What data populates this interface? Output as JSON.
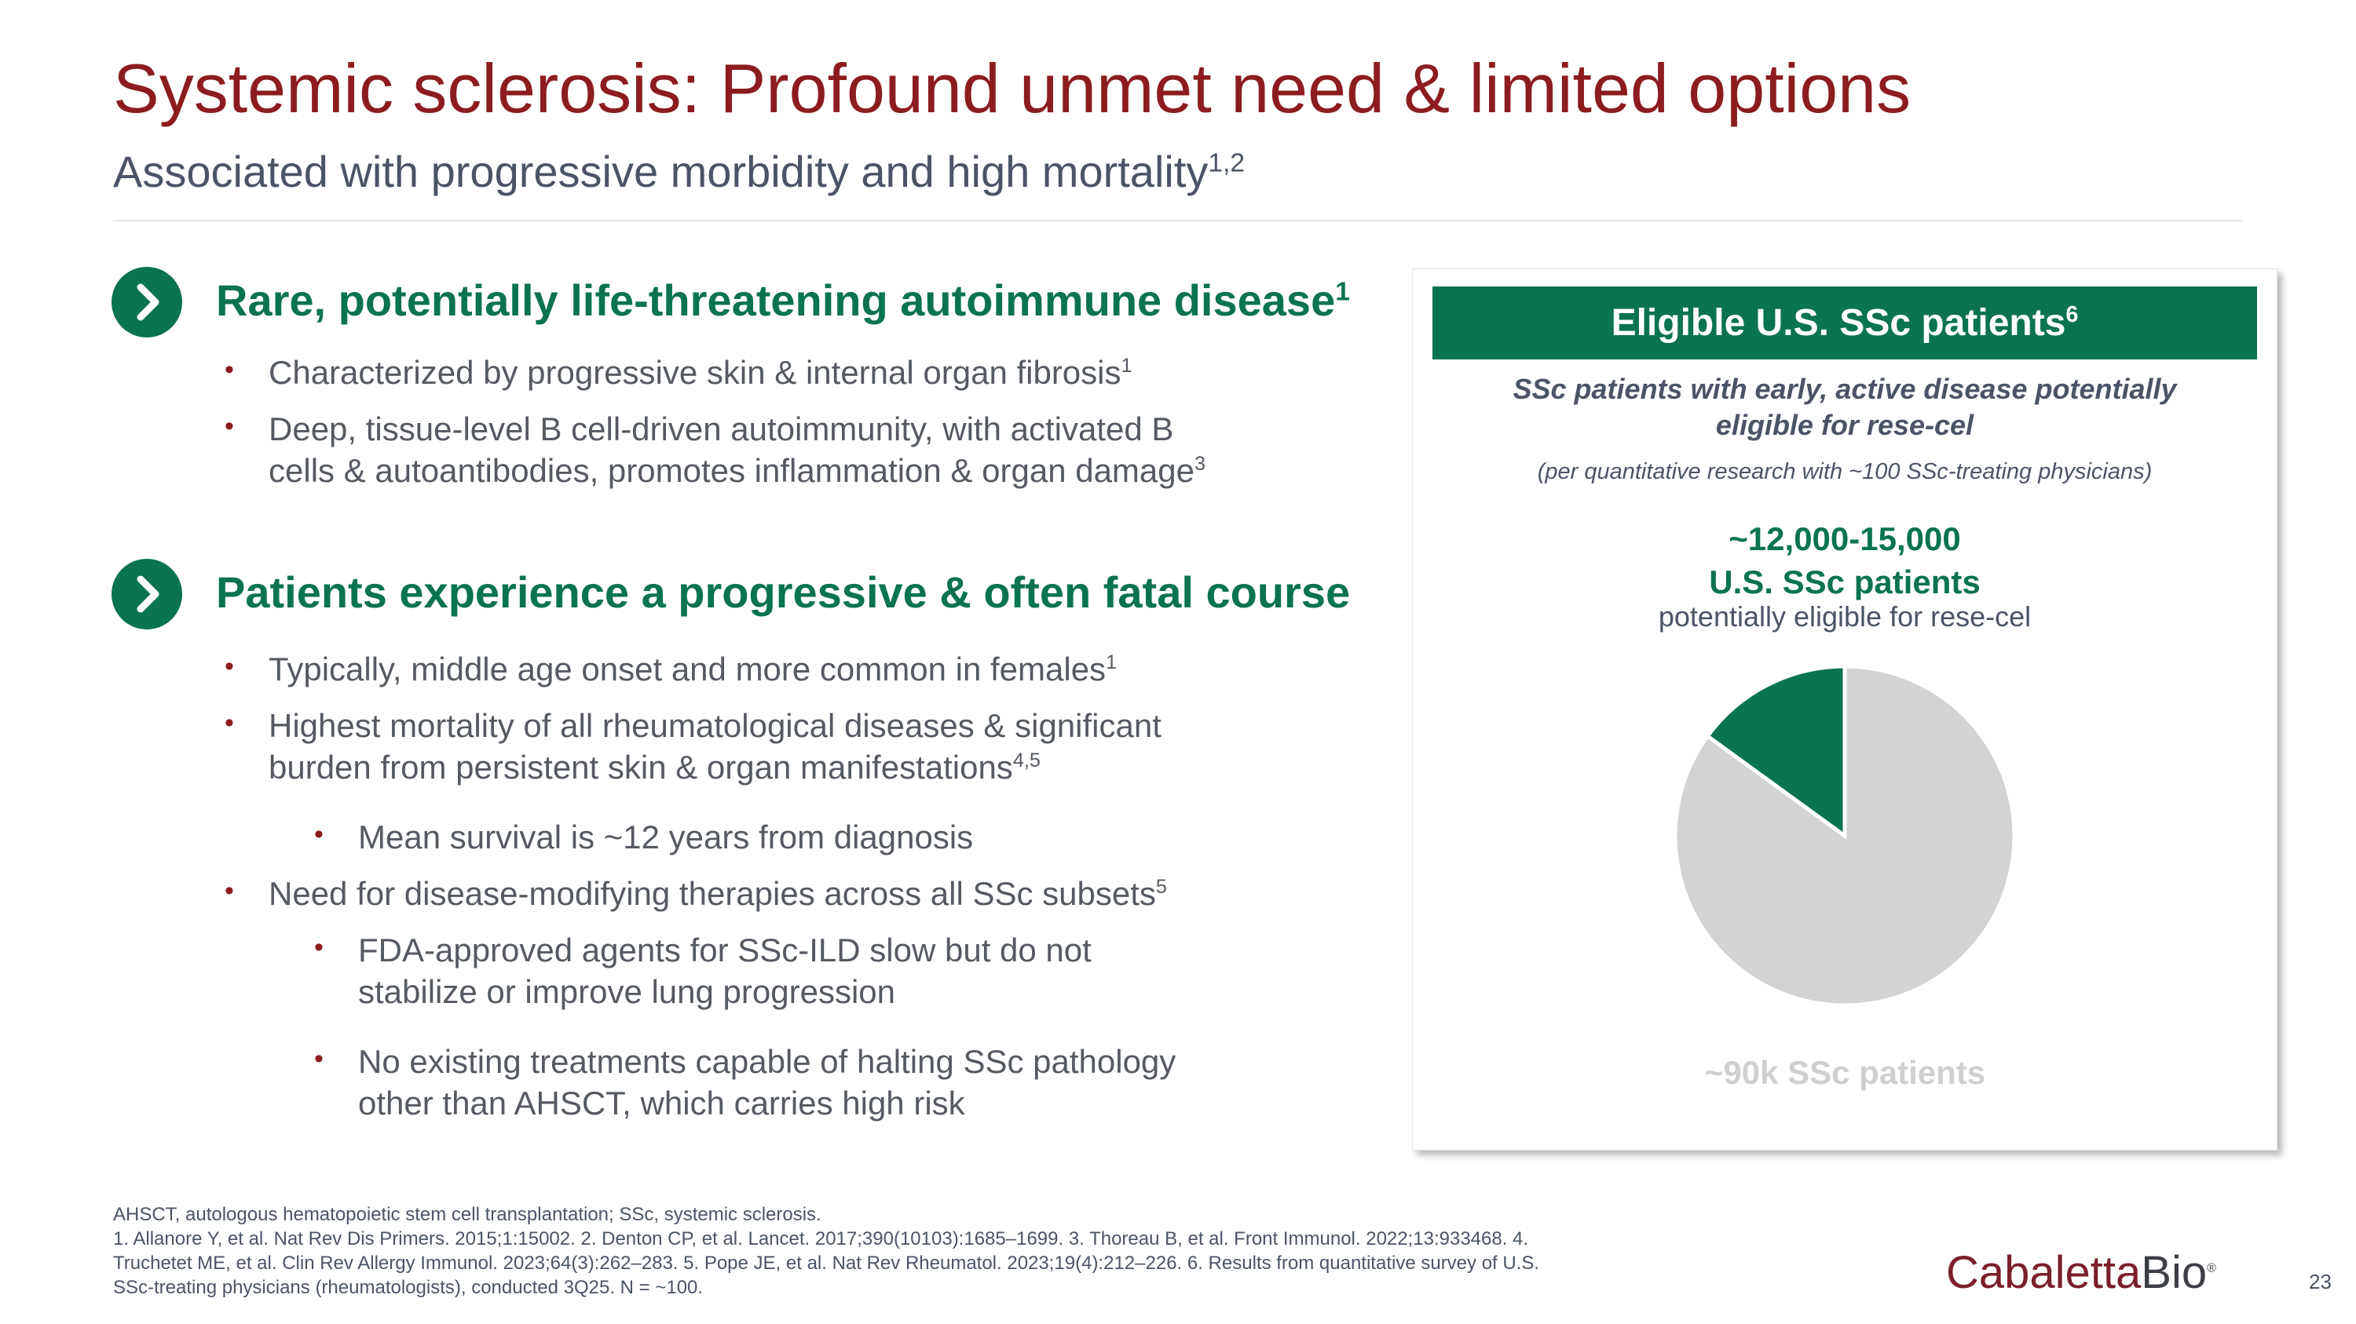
{
  "header": {
    "title": "Systemic sclerosis: Profound unmet need & limited options",
    "subtitle": "Associated with progressive morbidity and high mortality",
    "subtitle_sup": "1,2"
  },
  "sections": [
    {
      "icon": "chevron-right-icon",
      "heading": "Rare, potentially life-threatening autoimmune disease",
      "heading_sup": "1",
      "bullets": [
        {
          "level": 1,
          "lines": [
            "Characterized by progressive skin & internal organ fibrosis"
          ],
          "sup": "1"
        },
        {
          "level": 1,
          "lines": [
            "Deep, tissue-level B cell-driven autoimmunity, with activated B",
            "cells & autoantibodies, promotes inflammation & organ damage"
          ],
          "sup": "3"
        }
      ]
    },
    {
      "icon": "chevron-right-icon",
      "heading": "Patients experience a progressive & often fatal course",
      "heading_sup": "",
      "bullets": [
        {
          "level": 1,
          "lines": [
            "Typically, middle age onset and more common in females"
          ],
          "sup": "1"
        },
        {
          "level": 1,
          "lines": [
            "Highest mortality of all rheumatological diseases & significant",
            "burden from persistent skin & organ manifestations"
          ],
          "sup": "4,5"
        },
        {
          "level": 2,
          "lines": [
            "Mean survival is ~12 years from diagnosis"
          ],
          "sup": ""
        },
        {
          "level": 1,
          "lines": [
            "Need for disease-modifying therapies across all SSc subsets"
          ],
          "sup": "5"
        },
        {
          "level": 2,
          "lines": [
            "FDA-approved agents for SSc-ILD slow but do not",
            "stabilize or improve lung progression"
          ],
          "sup": ""
        },
        {
          "level": 2,
          "lines": [
            "No existing treatments capable of halting SSc pathology",
            "other than AHSCT, which carries high risk"
          ],
          "sup": ""
        }
      ]
    }
  ],
  "panel": {
    "title": "Eligible U.S. SSc patients",
    "title_sup": "6",
    "description_line1": "SSc patients with early, active disease potentially",
    "description_line2": "eligible for rese-cel",
    "note": "(per quantitative research with ~100 SSc-treating physicians)",
    "count": "~12,000-15,000",
    "count_label": "U.S. SSc patients",
    "eligibility": "potentially eligible for rese-cel",
    "total_label": "~90k SSc patients"
  },
  "chart_data": {
    "type": "pie",
    "slices": [
      {
        "label": "~12,000-15,000 U.S. SSc patients potentially eligible for rese-cel",
        "value": 15,
        "color": "#0a7352"
      },
      {
        "label": "~90k SSc patients",
        "value": 85,
        "color": "#d3d3d3"
      }
    ]
  },
  "footer": {
    "lines": [
      "AHSCT, autologous hematopoietic stem cell transplantation; SSc, systemic sclerosis.",
      "1. Allanore Y, et al. Nat Rev Dis Primers. 2015;1:15002. 2. Denton CP, et al. Lancet. 2017;390(10103):1685–1699. 3. Thoreau B, et al. Front Immunol. 2022;13:933468. 4.",
      "Truchetet ME, et al. Clin Rev Allergy Immunol. 2023;64(3):262–283. 5. Pope JE, et al. Nat Rev Rheumatol. 2023;19(4):212–226. 6. Results from quantitative survey of U.S.",
      "SSc-treating physicians (rheumatologists), conducted 3Q25. N = ~100."
    ]
  },
  "brand": {
    "logo_part1": "Cabaletta",
    "logo_part2": "Bio",
    "logo_mark": "®"
  },
  "page_number": "23",
  "colors": {
    "title": "#8c1c1f",
    "accent_green": "#0a7352",
    "pie_gray": "#d3d3d3"
  }
}
